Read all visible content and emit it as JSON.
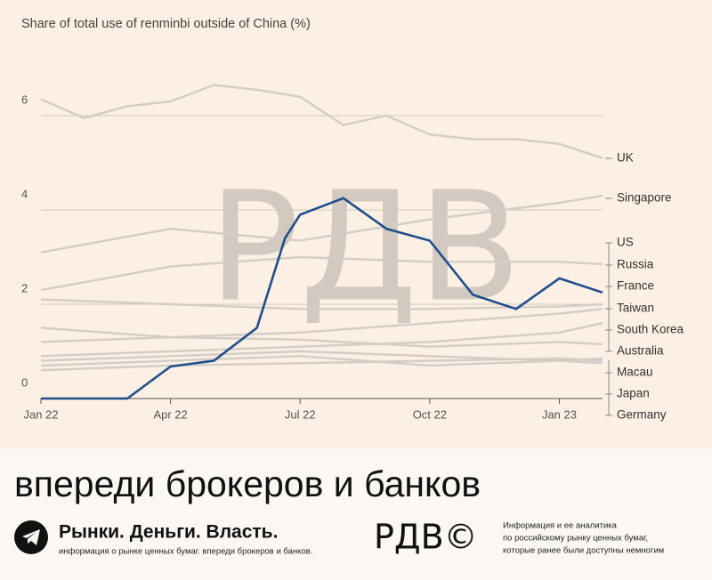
{
  "chart_data": {
    "type": "line",
    "title": "Share of total use of renminbi outside of China (%)",
    "watermark": "PДB",
    "xlim": [
      0,
      13
    ],
    "xticks": [
      {
        "value": 0,
        "label": "Jan 22"
      },
      {
        "value": 3,
        "label": "Apr 22"
      },
      {
        "value": 6,
        "label": "Jul 22"
      },
      {
        "value": 9,
        "label": "Oct 22"
      },
      {
        "value": 12,
        "label": "Jan 23"
      }
    ],
    "ylim": [
      0,
      6.6
    ],
    "yticks": [
      0,
      2,
      4,
      6
    ],
    "grid": true,
    "series": [
      {
        "name": "UK",
        "color": "#d3cdc8",
        "x": [
          0,
          1,
          2,
          3,
          4,
          5,
          6,
          7,
          8,
          9,
          10,
          11,
          12,
          13
        ],
        "values": [
          6.35,
          5.95,
          6.2,
          6.3,
          6.65,
          6.55,
          6.4,
          5.8,
          6.0,
          5.6,
          5.5,
          5.5,
          5.4,
          5.1
        ]
      },
      {
        "name": "Singapore",
        "color": "#d3cdc8",
        "x": [
          0,
          3,
          6,
          9,
          12,
          13
        ],
        "values": [
          3.1,
          3.6,
          3.35,
          3.8,
          4.15,
          4.3
        ]
      },
      {
        "name": "US",
        "color": "#d3cdc8",
        "x": [
          0,
          3,
          6,
          9,
          12,
          13
        ],
        "values": [
          2.3,
          2.8,
          3.0,
          2.9,
          2.9,
          2.85
        ]
      },
      {
        "name": "Russia",
        "color": "#1f4e8c",
        "x": [
          0,
          2,
          3,
          4,
          5,
          5.65,
          6,
          7,
          8,
          9,
          10,
          11,
          12,
          13
        ],
        "values": [
          0,
          0,
          0.68,
          0.8,
          1.5,
          3.4,
          3.9,
          4.25,
          3.6,
          3.35,
          2.2,
          1.9,
          2.55,
          2.25
        ]
      },
      {
        "name": "France",
        "color": "#d3cdc8",
        "x": [
          0,
          3,
          6,
          9,
          12,
          13
        ],
        "values": [
          2.1,
          2.0,
          1.9,
          1.9,
          1.95,
          2.0
        ]
      },
      {
        "name": "Taiwan",
        "color": "#d3cdc8",
        "x": [
          0,
          3,
          6,
          9,
          12,
          13
        ],
        "values": [
          1.5,
          1.3,
          1.4,
          1.6,
          1.8,
          1.9
        ]
      },
      {
        "name": "South Korea",
        "color": "#d3cdc8",
        "x": [
          0,
          3,
          6,
          9,
          12,
          13
        ],
        "values": [
          0.9,
          1.0,
          1.1,
          1.2,
          1.4,
          1.6
        ]
      },
      {
        "name": "Australia",
        "color": "#d3cdc8",
        "x": [
          0,
          3,
          6,
          9,
          12,
          13
        ],
        "values": [
          1.2,
          1.3,
          1.25,
          1.1,
          1.2,
          1.15
        ]
      },
      {
        "name": "Macau",
        "color": "#d3cdc8",
        "x": [
          0,
          3,
          6,
          9,
          12,
          13
        ],
        "values": [
          0.8,
          0.9,
          1.0,
          0.9,
          0.8,
          0.85
        ]
      },
      {
        "name": "Japan",
        "color": "#d3cdc8",
        "x": [
          0,
          3,
          6,
          9,
          12,
          13
        ],
        "values": [
          0.6,
          0.7,
          0.75,
          0.8,
          0.85,
          0.8
        ]
      },
      {
        "name": "Germany",
        "color": "#d3cdc8",
        "x": [
          0,
          3,
          6,
          9,
          12,
          13
        ],
        "values": [
          0.7,
          0.8,
          0.9,
          0.7,
          0.8,
          0.75
        ]
      }
    ]
  },
  "banner": {
    "slogan": "впереди брокеров и банков",
    "channel": "Рынки. Деньги. Власть.",
    "channel_sub": "информация о рынке ценных бумаг. впереди брокеров и банков.",
    "logo": "PДB©",
    "about": [
      "Информация и ее аналитика",
      "по российскому рынку ценных бумаг,",
      "которые ранее были доступны немногим"
    ]
  }
}
